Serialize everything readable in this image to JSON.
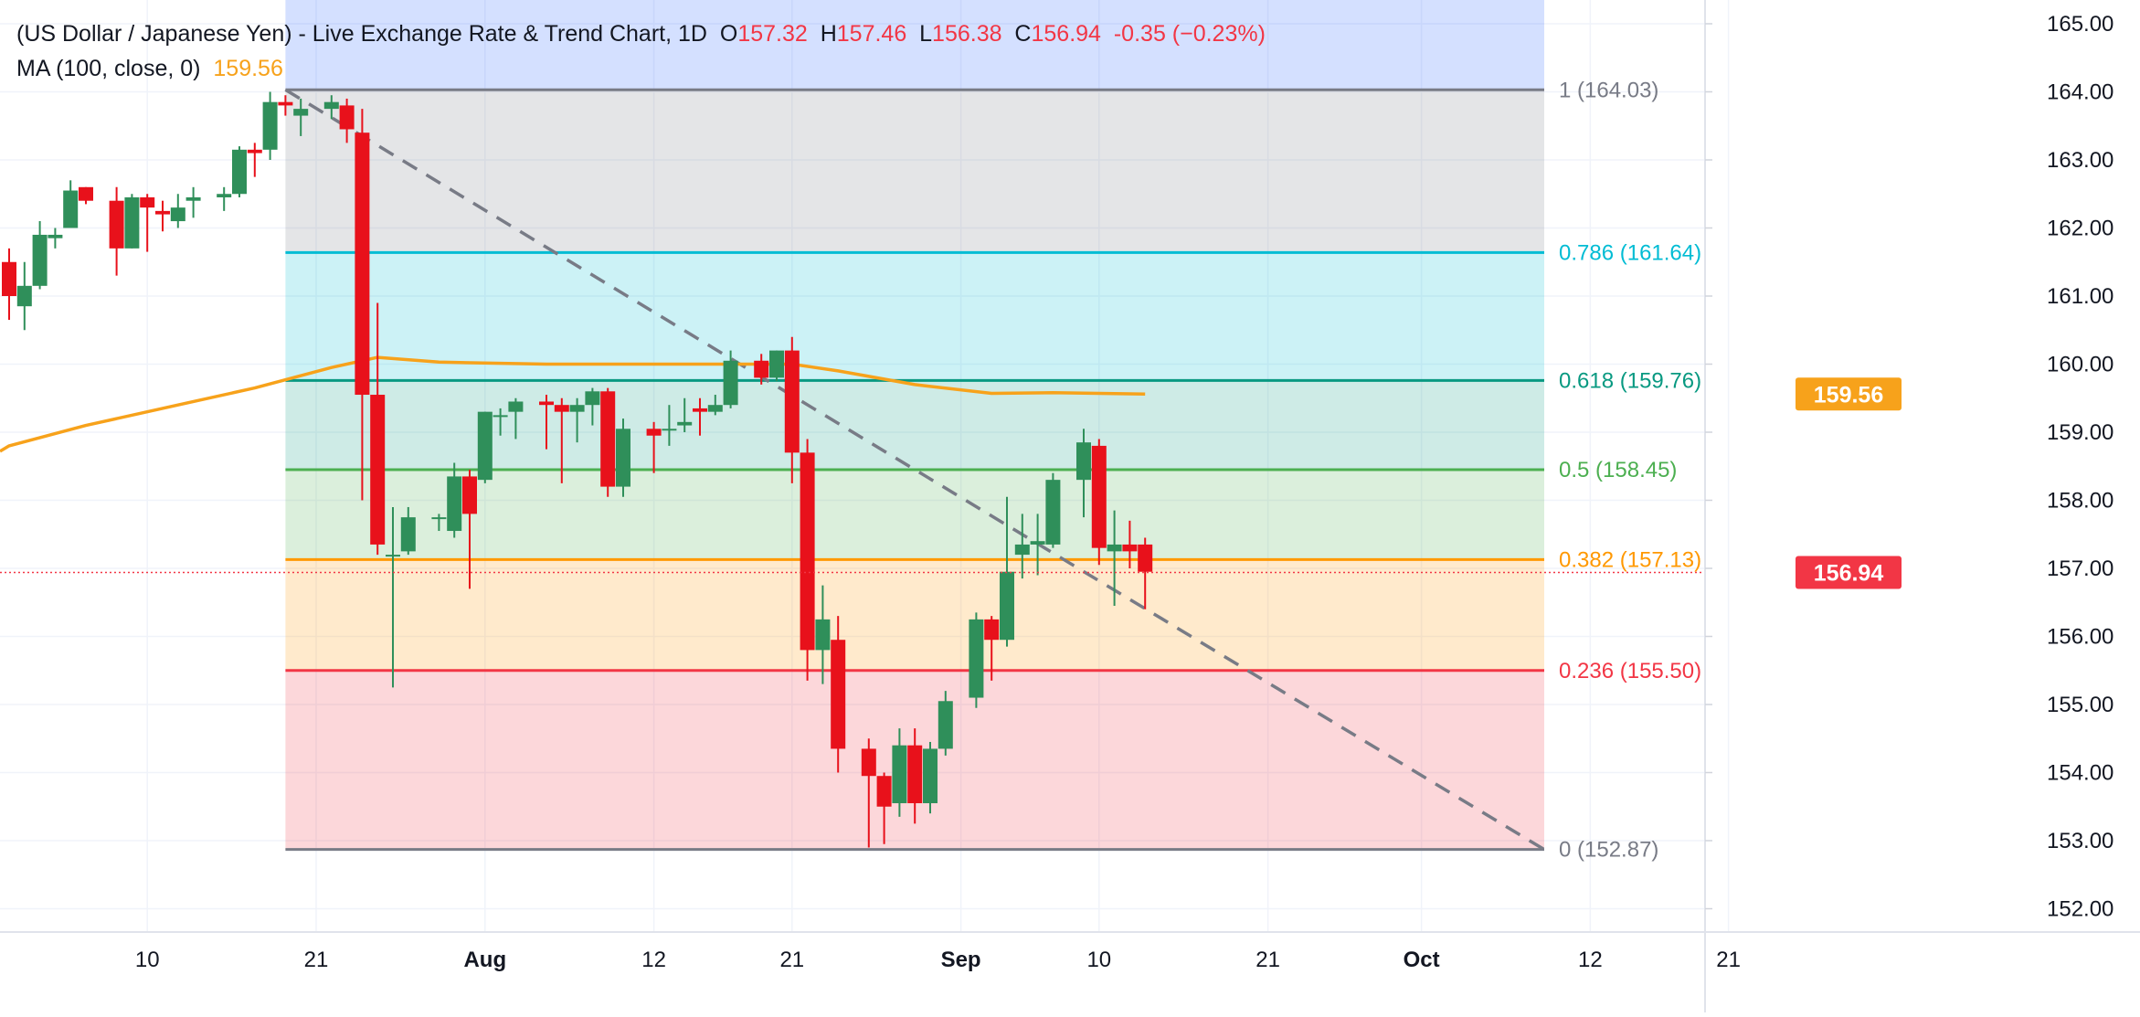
{
  "legend": {
    "title": "(US Dollar / Japanese Yen) - Live Exchange Rate & Trend Chart, 1D",
    "o_label": "O",
    "o_value": "157.32",
    "h_label": "H",
    "h_value": "157.46",
    "l_label": "L",
    "l_value": "156.38",
    "c_label": "C",
    "c_value": "156.94",
    "change": "-0.35 (−0.23%)",
    "ma_label": "MA (100, close, 0)",
    "ma_value": "159.56"
  },
  "chart_data": {
    "type": "candlestick",
    "symbol": "USD/JPY",
    "interval": "1D",
    "ylim": [
      151.8,
      165.3
    ],
    "y_ticks": [
      "152.00",
      "153.00",
      "154.00",
      "155.00",
      "156.00",
      "157.00",
      "158.00",
      "159.00",
      "160.00",
      "161.00",
      "162.00",
      "163.00",
      "164.00",
      "165.00"
    ],
    "x_ticks": [
      {
        "label": "10",
        "date": "2024-07-10",
        "bold": false
      },
      {
        "label": "21",
        "date": "2024-07-21",
        "bold": false
      },
      {
        "label": "Aug",
        "date": "2024-08-01",
        "bold": true
      },
      {
        "label": "12",
        "date": "2024-08-12",
        "bold": false
      },
      {
        "label": "21",
        "date": "2024-08-21",
        "bold": false
      },
      {
        "label": "Sep",
        "date": "2024-09-01",
        "bold": true
      },
      {
        "label": "10",
        "date": "2024-09-10",
        "bold": false
      },
      {
        "label": "21",
        "date": "2024-09-21",
        "bold": false
      },
      {
        "label": "Oct",
        "date": "2024-10-01",
        "bold": true
      },
      {
        "label": "12",
        "date": "2024-10-12",
        "bold": false
      },
      {
        "label": "21",
        "date": "2024-10-21",
        "bold": false
      }
    ],
    "candles": [
      {
        "date": "2024-07-01",
        "o": 161.5,
        "h": 161.7,
        "l": 160.65,
        "c": 161.0
      },
      {
        "date": "2024-07-02",
        "o": 160.85,
        "h": 161.5,
        "l": 160.5,
        "c": 161.15
      },
      {
        "date": "2024-07-03",
        "o": 161.15,
        "h": 162.1,
        "l": 161.1,
        "c": 161.9
      },
      {
        "date": "2024-07-04",
        "o": 161.85,
        "h": 162.0,
        "l": 161.7,
        "c": 161.9
      },
      {
        "date": "2024-07-05",
        "o": 162.0,
        "h": 162.7,
        "l": 162.0,
        "c": 162.55
      },
      {
        "date": "2024-07-06",
        "o": 162.6,
        "h": 162.6,
        "l": 162.35,
        "c": 162.4
      },
      {
        "date": "2024-07-08",
        "o": 162.4,
        "h": 162.6,
        "l": 161.3,
        "c": 161.7
      },
      {
        "date": "2024-07-09",
        "o": 161.7,
        "h": 162.5,
        "l": 161.7,
        "c": 162.45
      },
      {
        "date": "2024-07-10",
        "o": 162.45,
        "h": 162.5,
        "l": 161.65,
        "c": 162.3
      },
      {
        "date": "2024-07-11",
        "o": 162.25,
        "h": 162.4,
        "l": 161.95,
        "c": 162.2
      },
      {
        "date": "2024-07-12",
        "o": 162.1,
        "h": 162.5,
        "l": 162.0,
        "c": 162.3
      },
      {
        "date": "2024-07-13",
        "o": 162.4,
        "h": 162.6,
        "l": 162.15,
        "c": 162.45
      },
      {
        "date": "2024-07-15",
        "o": 162.45,
        "h": 162.6,
        "l": 162.25,
        "c": 162.5
      },
      {
        "date": "2024-07-16",
        "o": 162.5,
        "h": 163.2,
        "l": 162.45,
        "c": 163.15
      },
      {
        "date": "2024-07-17",
        "o": 163.15,
        "h": 163.25,
        "l": 162.75,
        "c": 163.1
      },
      {
        "date": "2024-07-18",
        "o": 163.15,
        "h": 164.0,
        "l": 163.0,
        "c": 163.85
      },
      {
        "date": "2024-07-19",
        "o": 163.85,
        "h": 163.95,
        "l": 163.65,
        "c": 163.8
      },
      {
        "date": "2024-07-20",
        "o": 163.65,
        "h": 163.9,
        "l": 163.35,
        "c": 163.75
      },
      {
        "date": "2024-07-22",
        "o": 163.75,
        "h": 163.95,
        "l": 163.6,
        "c": 163.85
      },
      {
        "date": "2024-07-23",
        "o": 163.8,
        "h": 163.9,
        "l": 163.25,
        "c": 163.45
      },
      {
        "date": "2024-07-24",
        "o": 163.4,
        "h": 163.75,
        "l": 158.0,
        "c": 159.55
      },
      {
        "date": "2024-07-25",
        "o": 159.55,
        "h": 160.9,
        "l": 157.2,
        "c": 157.35
      },
      {
        "date": "2024-07-26",
        "o": 157.2,
        "h": 157.9,
        "l": 155.25,
        "c": 157.2
      },
      {
        "date": "2024-07-27",
        "o": 157.25,
        "h": 157.9,
        "l": 157.2,
        "c": 157.75
      },
      {
        "date": "2024-07-29",
        "o": 157.75,
        "h": 157.8,
        "l": 157.55,
        "c": 157.75
      },
      {
        "date": "2024-07-30",
        "o": 157.55,
        "h": 158.55,
        "l": 157.45,
        "c": 158.35
      },
      {
        "date": "2024-07-31",
        "o": 158.35,
        "h": 158.45,
        "l": 156.7,
        "c": 157.8
      },
      {
        "date": "2024-08-01",
        "o": 158.3,
        "h": 159.3,
        "l": 158.25,
        "c": 159.3
      },
      {
        "date": "2024-08-02",
        "o": 159.25,
        "h": 159.35,
        "l": 158.95,
        "c": 159.25
      },
      {
        "date": "2024-08-03",
        "o": 159.3,
        "h": 159.5,
        "l": 158.9,
        "c": 159.45
      },
      {
        "date": "2024-08-05",
        "o": 159.45,
        "h": 159.55,
        "l": 158.75,
        "c": 159.4
      },
      {
        "date": "2024-08-06",
        "o": 159.4,
        "h": 159.5,
        "l": 158.25,
        "c": 159.3
      },
      {
        "date": "2024-08-07",
        "o": 159.3,
        "h": 159.5,
        "l": 158.85,
        "c": 159.4
      },
      {
        "date": "2024-08-08",
        "o": 159.4,
        "h": 159.65,
        "l": 159.1,
        "c": 159.6
      },
      {
        "date": "2024-08-09",
        "o": 159.6,
        "h": 159.65,
        "l": 158.05,
        "c": 158.2
      },
      {
        "date": "2024-08-10",
        "o": 158.2,
        "h": 159.2,
        "l": 158.05,
        "c": 159.05
      },
      {
        "date": "2024-08-12",
        "o": 159.05,
        "h": 159.15,
        "l": 158.4,
        "c": 158.95
      },
      {
        "date": "2024-08-13",
        "o": 159.05,
        "h": 159.4,
        "l": 158.8,
        "c": 159.05
      },
      {
        "date": "2024-08-14",
        "o": 159.1,
        "h": 159.5,
        "l": 159.0,
        "c": 159.15
      },
      {
        "date": "2024-08-15",
        "o": 159.35,
        "h": 159.5,
        "l": 158.95,
        "c": 159.3
      },
      {
        "date": "2024-08-16",
        "o": 159.3,
        "h": 159.55,
        "l": 159.25,
        "c": 159.4
      },
      {
        "date": "2024-08-17",
        "o": 159.4,
        "h": 160.2,
        "l": 159.35,
        "c": 160.05
      },
      {
        "date": "2024-08-19",
        "o": 160.05,
        "h": 160.15,
        "l": 159.7,
        "c": 159.8
      },
      {
        "date": "2024-08-20",
        "o": 159.8,
        "h": 160.2,
        "l": 159.75,
        "c": 160.2
      },
      {
        "date": "2024-08-21",
        "o": 160.2,
        "h": 160.4,
        "l": 158.25,
        "c": 158.7
      },
      {
        "date": "2024-08-22",
        "o": 158.7,
        "h": 158.9,
        "l": 155.35,
        "c": 155.8
      },
      {
        "date": "2024-08-23",
        "o": 155.8,
        "h": 156.75,
        "l": 155.3,
        "c": 156.25
      },
      {
        "date": "2024-08-24",
        "o": 155.95,
        "h": 156.3,
        "l": 154.0,
        "c": 154.35
      },
      {
        "date": "2024-08-26",
        "o": 154.35,
        "h": 154.5,
        "l": 152.9,
        "c": 153.95
      },
      {
        "date": "2024-08-27",
        "o": 153.95,
        "h": 154.0,
        "l": 152.95,
        "c": 153.5
      },
      {
        "date": "2024-08-28",
        "o": 153.55,
        "h": 154.65,
        "l": 153.35,
        "c": 154.4
      },
      {
        "date": "2024-08-29",
        "o": 154.4,
        "h": 154.65,
        "l": 153.25,
        "c": 153.55
      },
      {
        "date": "2024-08-30",
        "o": 153.55,
        "h": 154.45,
        "l": 153.4,
        "c": 154.35
      },
      {
        "date": "2024-08-31",
        "o": 154.35,
        "h": 155.2,
        "l": 154.25,
        "c": 155.05
      },
      {
        "date": "2024-09-02",
        "o": 155.1,
        "h": 156.35,
        "l": 154.95,
        "c": 156.25
      },
      {
        "date": "2024-09-03",
        "o": 156.25,
        "h": 156.3,
        "l": 155.35,
        "c": 155.95
      },
      {
        "date": "2024-09-04",
        "o": 155.95,
        "h": 158.05,
        "l": 155.85,
        "c": 156.95
      },
      {
        "date": "2024-09-05",
        "o": 157.2,
        "h": 157.8,
        "l": 156.85,
        "c": 157.35
      },
      {
        "date": "2024-09-06",
        "o": 157.35,
        "h": 157.8,
        "l": 156.9,
        "c": 157.4
      },
      {
        "date": "2024-09-07",
        "o": 157.35,
        "h": 158.4,
        "l": 157.3,
        "c": 158.3
      },
      {
        "date": "2024-09-09",
        "o": 158.3,
        "h": 159.05,
        "l": 157.75,
        "c": 158.85
      },
      {
        "date": "2024-09-10",
        "o": 158.8,
        "h": 158.9,
        "l": 157.05,
        "c": 157.3
      },
      {
        "date": "2024-09-11",
        "o": 157.25,
        "h": 157.85,
        "l": 156.45,
        "c": 157.35
      },
      {
        "date": "2024-09-12",
        "o": 157.35,
        "h": 157.7,
        "l": 157.0,
        "c": 157.25
      },
      {
        "date": "2024-09-13",
        "o": 157.35,
        "h": 157.45,
        "l": 156.4,
        "c": 156.95
      }
    ],
    "ma": {
      "label": "MA (100, close, 0)",
      "color": "#f7a21b",
      "last_value": 159.56,
      "points": [
        {
          "date": "2024-07-01",
          "value": 158.8
        },
        {
          "date": "2024-07-06",
          "value": 159.1
        },
        {
          "date": "2024-07-12",
          "value": 159.4
        },
        {
          "date": "2024-07-17",
          "value": 159.65
        },
        {
          "date": "2024-07-22",
          "value": 159.95
        },
        {
          "date": "2024-07-25",
          "value": 160.1
        },
        {
          "date": "2024-07-29",
          "value": 160.03
        },
        {
          "date": "2024-08-05",
          "value": 160.0
        },
        {
          "date": "2024-08-12",
          "value": 160.0
        },
        {
          "date": "2024-08-18",
          "value": 160.0
        },
        {
          "date": "2024-08-21",
          "value": 160.0
        },
        {
          "date": "2024-08-24",
          "value": 159.9
        },
        {
          "date": "2024-08-29",
          "value": 159.7
        },
        {
          "date": "2024-09-03",
          "value": 159.57
        },
        {
          "date": "2024-09-07",
          "value": 159.58
        },
        {
          "date": "2024-09-13",
          "value": 159.56
        }
      ]
    },
    "fibonacci": {
      "levels": [
        {
          "label": "1 (164.03)",
          "price": 164.03,
          "line_color": "#787b86",
          "label_color": "#787b86",
          "zone_color": "rgba(120,123,134,0.2)"
        },
        {
          "label": "0.786 (161.64)",
          "price": 161.64,
          "line_color": "#00bcd4",
          "label_color": "#00bcd4",
          "zone_color": "rgba(0,188,212,0.2)"
        },
        {
          "label": "0.618 (159.76)",
          "price": 159.76,
          "line_color": "#089981",
          "label_color": "#089981",
          "zone_color": "rgba(8,153,129,0.2)"
        },
        {
          "label": "0.5 (158.45)",
          "price": 158.45,
          "line_color": "#4caf50",
          "label_color": "#4caf50",
          "zone_color": "rgba(76,175,80,0.2)"
        },
        {
          "label": "0.382 (157.13)",
          "price": 157.13,
          "line_color": "#ff9800",
          "label_color": "#ff9800",
          "zone_color": "rgba(255,152,0,0.2)"
        },
        {
          "label": "0.236 (155.50)",
          "price": 155.5,
          "line_color": "#f23645",
          "label_color": "#f23645",
          "zone_color": "rgba(242,54,69,0.2)"
        },
        {
          "label": "0 (152.87)",
          "price": 152.87,
          "line_color": "#787b86",
          "label_color": "#787b86",
          "zone_color": ""
        }
      ],
      "top_zone_color": "rgba(41,98,255,0.2)",
      "start_date": "2024-07-19",
      "end_date": "2024-10-09",
      "trend_line": {
        "from": {
          "date": "2024-07-19",
          "price": 164.03
        },
        "to": {
          "date": "2024-10-09",
          "price": 152.87
        },
        "color": "#787b86"
      }
    },
    "current_price": {
      "value": 156.94,
      "label": "156.94",
      "color": "#f23645"
    },
    "ma_tag": {
      "label": "159.56",
      "color": "#f7a21b"
    },
    "colors": {
      "up": "#26a69a",
      "up_fill": "#2f8f5a",
      "down": "#f23645",
      "down_fill": "#e8111b",
      "grid": "#f0f3fa",
      "axis_text": "#131722"
    }
  }
}
